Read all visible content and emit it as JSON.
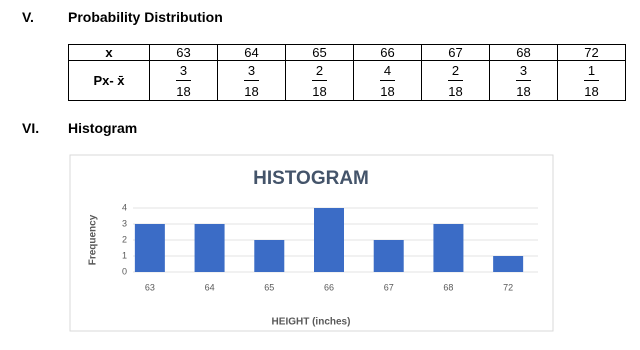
{
  "sections": [
    {
      "number": "V.",
      "title": "Probability Distribution"
    },
    {
      "number": "VI.",
      "title": "Histogram"
    }
  ],
  "table": {
    "header": [
      "x",
      63,
      64,
      65,
      66,
      67,
      68,
      72
    ],
    "fraction_row": {
      "label": "Px- x̄",
      "cells": [
        {
          "numerator": 3,
          "denominator": 18
        },
        {
          "numerator": 3,
          "denominator": 18
        },
        {
          "numerator": 2,
          "denominator": 18
        },
        {
          "numerator": 4,
          "denominator": 18
        },
        {
          "numerator": 2,
          "denominator": 18
        },
        {
          "numerator": 3,
          "denominator": 18
        },
        {
          "numerator": 1,
          "denominator": 18
        }
      ]
    }
  },
  "chart_data": {
    "type": "bar",
    "title": "HISTOGRAM",
    "categories": [
      "63",
      "64",
      "65",
      "66",
      "67",
      "68",
      "72"
    ],
    "values": [
      3,
      3,
      2,
      4,
      2,
      3,
      1
    ],
    "color": "#3b6cc6",
    "ylim": [
      0,
      4
    ],
    "yticks": [
      0,
      1,
      2,
      3,
      4
    ],
    "grid": true,
    "xlabel": "HEIGHT (inches)",
    "ylabel": "Frequency"
  }
}
